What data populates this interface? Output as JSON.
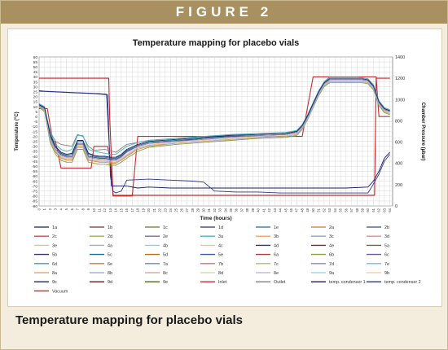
{
  "figure": {
    "banner": "FIGURE 2",
    "caption": "Temperature mapping for placebo vials"
  },
  "chart_data": {
    "type": "line",
    "title": "Temperature mapping for placebo vials",
    "xlabel": "Time (hours)",
    "ylabel": "Temperature (°C)",
    "y2label": "Chamber Pressure (µbar)",
    "xlim": [
      0,
      64.5
    ],
    "ylim": [
      -90,
      60
    ],
    "y2lim": [
      0,
      1400
    ],
    "x_ticks": [
      0,
      1,
      2,
      3,
      4,
      5,
      6,
      7,
      8,
      9,
      10,
      11,
      12,
      13,
      14,
      15,
      16,
      17,
      18,
      19,
      20,
      21,
      22,
      23,
      24,
      25,
      26,
      27,
      28,
      29,
      30,
      31,
      32,
      33,
      34,
      35,
      36,
      37,
      38,
      39,
      40,
      41,
      42,
      43,
      44,
      45,
      46,
      47,
      48,
      49,
      50,
      51,
      52,
      53,
      54,
      55,
      56,
      57,
      58,
      59,
      60,
      61,
      62,
      63,
      64
    ],
    "y_ticks": [
      60,
      55,
      50,
      45,
      40,
      35,
      30,
      25,
      20,
      15,
      10,
      5,
      0,
      -5,
      -10,
      -15,
      -20,
      -25,
      -30,
      -35,
      -40,
      -45,
      -50,
      -55,
      -60,
      -65,
      -70,
      -75,
      -80,
      -85,
      -90
    ],
    "y2_ticks": [
      1400,
      1200,
      1000,
      800,
      600,
      400,
      200,
      0
    ],
    "grid": true,
    "legend_position": "bottom",
    "legend": [
      "1a",
      "1b",
      "1c",
      "1d",
      "1e",
      "2a",
      "2b",
      "2c",
      "2d",
      "2e",
      "3a",
      "3b",
      "3c",
      "3d",
      "3e",
      "4a",
      "4b",
      "4c",
      "4d",
      "4e",
      "5a",
      "5b",
      "5c",
      "5d",
      "5e",
      "6a",
      "6b",
      "6c",
      "6d",
      "6e",
      "7a",
      "7b",
      "7c",
      "7d",
      "7e",
      "8a",
      "8b",
      "8c",
      "8d",
      "8e",
      "9a",
      "9b",
      "9c",
      "9d",
      "9e",
      "Inlet",
      "Outlet",
      "temp. condenser 1",
      "temp. condenser 2",
      "Vacuum"
    ],
    "legend_colors": [
      "#2e4a7a",
      "#a04a4a",
      "#7a9440",
      "#5c4a8a",
      "#3a8aa8",
      "#e08a3a",
      "#4a6aa8",
      "#c05050",
      "#9ab050",
      "#7a6aa8",
      "#4ab0c8",
      "#f0a060",
      "#8aa0d0",
      "#d89090",
      "#c0d090",
      "#b0a0d0",
      "#8ad0e0",
      "#f8c090",
      "#2a3a6a",
      "#802a2a",
      "#5a7a2a",
      "#403070",
      "#206a8a",
      "#b86a20",
      "#3a5a9a",
      "#b03a3a",
      "#8aa040",
      "#6a5a98",
      "#3aa0b8",
      "#e07a2a",
      "#6a8ac0",
      "#d07070",
      "#b0c070",
      "#9080c0",
      "#70c0d8",
      "#f0a870",
      "#a0b0d8",
      "#e0a8a8",
      "#d0e0a8",
      "#c8b8e0",
      "#a0d8e8",
      "#f8d0b0",
      "#1a2a5a",
      "#701a1a",
      "#4a6a1a",
      "#c03030",
      "#808080",
      "#1a1a66",
      "#2a3a88",
      "#cc2222"
    ],
    "series": [
      {
        "name": "Inlet",
        "color": "#c03030",
        "axis": "left",
        "x": [
          0,
          1.5,
          2.5,
          3,
          4,
          9.5,
          10,
          12.5,
          13,
          13.5,
          15,
          17,
          18,
          48,
          50,
          52,
          53,
          59,
          61.5,
          62,
          64
        ],
        "y": [
          8,
          8,
          -25,
          -25,
          -52,
          -52,
          -30,
          -30,
          -45,
          -80,
          -80,
          -80,
          -20,
          -20,
          40,
          40,
          40,
          40,
          40,
          0,
          0
        ]
      },
      {
        "name": "Vacuum",
        "color": "#cc2222",
        "axis": "right",
        "x": [
          0,
          12.7,
          12.9,
          13.5,
          61.2,
          61.5,
          64
        ],
        "y": [
          1200,
          1200,
          800,
          100,
          100,
          1200,
          1200
        ]
      },
      {
        "name": "temp. condenser 1",
        "color": "#1a1a66",
        "axis": "left",
        "x": [
          0,
          1,
          3,
          5,
          7,
          9,
          11,
          12.3,
          12.7,
          13.2,
          14,
          16,
          18,
          20,
          24,
          30,
          36,
          42,
          48,
          52,
          56,
          60,
          61,
          62,
          63,
          64
        ],
        "y": [
          26,
          25.5,
          25,
          24.5,
          24,
          23.5,
          23,
          22.5,
          -20,
          -70,
          -70,
          -70,
          -72,
          -71,
          -72,
          -72,
          -72,
          -72,
          -72,
          -72,
          -72,
          -71,
          -65,
          -55,
          -42,
          -36
        ]
      },
      {
        "name": "temp. condenser 2",
        "color": "#2a3a88",
        "axis": "left",
        "x": [
          0,
          2,
          6,
          10,
          12.5,
          13,
          13.5,
          14,
          15,
          16,
          20,
          24,
          28,
          30,
          32,
          36,
          40,
          44,
          48,
          52,
          56,
          60,
          61,
          62,
          63,
          64
        ],
        "y": [
          25.5,
          25,
          24,
          23,
          22,
          -60,
          -75,
          -77,
          -75,
          -64,
          -63,
          -64,
          -65,
          -66,
          -75,
          -76,
          -76,
          -77,
          -77,
          -77,
          -77,
          -77,
          -68,
          -58,
          -45,
          -38
        ]
      },
      {
        "name": "Outlet",
        "color": "#808080",
        "axis": "left",
        "x": [
          0,
          1,
          2,
          3,
          4,
          6,
          7,
          8,
          9,
          10,
          12,
          14,
          16,
          20,
          30,
          40,
          46,
          48,
          50,
          52,
          53,
          55,
          58,
          60,
          61,
          62,
          63,
          64
        ],
        "y": [
          10,
          8,
          -15,
          -25,
          -28,
          -30,
          -18,
          -20,
          -30,
          -34,
          -33,
          -36,
          -28,
          -24,
          -20,
          -17,
          -16,
          -12,
          10,
          35,
          40,
          40,
          40,
          38,
          32,
          15,
          8,
          6
        ]
      },
      {
        "name": "1a",
        "color": "#2e4a7a",
        "axis": "left",
        "x": [
          0,
          1,
          2,
          3,
          4,
          5,
          6,
          7,
          8,
          9,
          10,
          11,
          12,
          13,
          14,
          15,
          16,
          18,
          20,
          25,
          30,
          35,
          40,
          45,
          47,
          48,
          49,
          50,
          51,
          52,
          53,
          56,
          59,
          60,
          61,
          62,
          63,
          64
        ],
        "y": [
          12,
          8,
          -20,
          -33,
          -38,
          -40,
          -40,
          -27,
          -27,
          -40,
          -41,
          -42,
          -42,
          -43,
          -43,
          -40,
          -35,
          -30,
          -27,
          -25,
          -22,
          -20,
          -19,
          -18,
          -16,
          -10,
          0,
          12,
          24,
          33,
          37,
          37,
          37,
          36,
          30,
          14,
          7,
          5
        ]
      },
      {
        "name": "2a",
        "color": "#e08a3a",
        "axis": "left",
        "x": [
          0,
          1,
          2,
          3,
          4,
          5,
          6,
          7,
          8,
          9,
          10,
          11,
          12,
          13,
          14,
          15,
          16,
          18,
          20,
          25,
          30,
          35,
          40,
          45,
          47,
          48,
          49,
          50,
          51,
          52,
          53,
          56,
          59,
          60,
          61,
          62,
          63,
          64
        ],
        "y": [
          10,
          6,
          -24,
          -36,
          -42,
          -44,
          -44,
          -31,
          -31,
          -44,
          -45,
          -46,
          -46,
          -47,
          -47,
          -44,
          -40,
          -33,
          -30,
          -27,
          -25,
          -23,
          -21,
          -20,
          -18,
          -12,
          -2,
          10,
          22,
          31,
          35,
          35,
          35,
          34,
          28,
          12,
          5,
          3
        ]
      },
      {
        "name": "3e",
        "color": "#4ab0c8",
        "axis": "left",
        "x": [
          0,
          1,
          2,
          3,
          4,
          5,
          6,
          7,
          8,
          9,
          10,
          11,
          12,
          13,
          14,
          15,
          16,
          18,
          20,
          25,
          30,
          35,
          40,
          45,
          47,
          48,
          49,
          50,
          51,
          52,
          53,
          56,
          59,
          60,
          61,
          62,
          63,
          64
        ],
        "y": [
          13,
          10,
          -16,
          -28,
          -33,
          -35,
          -33,
          -19,
          -19,
          -33,
          -35,
          -36,
          -37,
          -38,
          -38,
          -34,
          -30,
          -26,
          -24,
          -22,
          -20,
          -18,
          -17,
          -16,
          -14,
          -8,
          2,
          14,
          26,
          35,
          39,
          39,
          39,
          38,
          32,
          16,
          9,
          7
        ]
      },
      {
        "name": "4c",
        "color": "#f8c090",
        "axis": "left",
        "x": [
          0,
          1,
          2,
          3,
          4,
          5,
          6,
          7,
          8,
          9,
          10,
          11,
          12,
          13,
          14,
          15,
          16,
          18,
          20,
          25,
          30,
          35,
          40,
          45,
          47,
          48,
          49,
          50,
          51,
          52,
          53,
          56,
          59,
          60,
          61,
          62,
          63,
          64
        ],
        "y": [
          11,
          7,
          -22,
          -34,
          -40,
          -42,
          -42,
          -29,
          -29,
          -42,
          -43,
          -44,
          -44,
          -45,
          -45,
          -42,
          -38,
          -31,
          -28,
          -26,
          -24,
          -22,
          -20,
          -19,
          -17,
          -11,
          -1,
          11,
          23,
          32,
          36,
          36,
          36,
          35,
          29,
          13,
          6,
          4
        ]
      },
      {
        "name": "5c",
        "color": "#206a8a",
        "axis": "left",
        "x": [
          0,
          1,
          2,
          3,
          4,
          5,
          6,
          7,
          8,
          9,
          10,
          11,
          12,
          13,
          14,
          15,
          16,
          18,
          20,
          25,
          30,
          35,
          40,
          45,
          47,
          48,
          49,
          50,
          51,
          52,
          53,
          56,
          59,
          60,
          61,
          62,
          63,
          64
        ],
        "y": [
          12,
          9,
          -19,
          -31,
          -37,
          -39,
          -38,
          -25,
          -25,
          -38,
          -40,
          -41,
          -41,
          -42,
          -42,
          -39,
          -34,
          -29,
          -26,
          -24,
          -22,
          -20,
          -19,
          -18,
          -16,
          -10,
          0,
          12,
          24,
          33,
          37,
          37,
          37,
          36,
          30,
          14,
          7,
          5
        ]
      },
      {
        "name": "6b",
        "color": "#8aa040",
        "axis": "left",
        "x": [
          0,
          1,
          2,
          3,
          4,
          5,
          6,
          7,
          8,
          9,
          10,
          11,
          12,
          13,
          14,
          15,
          16,
          18,
          20,
          25,
          30,
          35,
          40,
          45,
          47,
          48,
          49,
          50,
          51,
          52,
          53,
          56,
          59,
          60,
          61,
          62,
          63,
          64
        ],
        "y": [
          9,
          5,
          -26,
          -38,
          -44,
          -46,
          -46,
          -33,
          -33,
          -46,
          -47,
          -48,
          -48,
          -49,
          -49,
          -46,
          -42,
          -35,
          -31,
          -28,
          -26,
          -24,
          -22,
          -21,
          -19,
          -13,
          -3,
          9,
          21,
          30,
          34,
          34,
          34,
          33,
          27,
          11,
          4,
          2
        ]
      },
      {
        "name": "7d",
        "color": "#9080c0",
        "axis": "left",
        "x": [
          0,
          1,
          2,
          3,
          4,
          5,
          6,
          7,
          8,
          9,
          10,
          11,
          12,
          13,
          14,
          15,
          16,
          18,
          20,
          25,
          30,
          35,
          40,
          45,
          47,
          48,
          49,
          50,
          51,
          52,
          53,
          56,
          59,
          60,
          61,
          62,
          63,
          64
        ],
        "y": [
          11,
          8,
          -21,
          -33,
          -39,
          -41,
          -41,
          -28,
          -28,
          -41,
          -42,
          -43,
          -43,
          -44,
          -44,
          -41,
          -36,
          -30,
          -27,
          -25,
          -23,
          -21,
          -19,
          -18,
          -16,
          -10,
          0,
          12,
          24,
          33,
          37,
          37,
          37,
          36,
          30,
          14,
          7,
          5
        ]
      },
      {
        "name": "8b",
        "color": "#a0b0d8",
        "axis": "left",
        "x": [
          0,
          1,
          2,
          3,
          4,
          5,
          6,
          7,
          8,
          9,
          10,
          11,
          12,
          13,
          14,
          15,
          16,
          18,
          20,
          25,
          30,
          35,
          40,
          45,
          47,
          48,
          49,
          50,
          51,
          52,
          53,
          56,
          59,
          60,
          61,
          62,
          63,
          64
        ],
        "y": [
          10,
          7,
          -23,
          -35,
          -41,
          -43,
          -43,
          -30,
          -30,
          -43,
          -44,
          -45,
          -45,
          -46,
          -46,
          -43,
          -39,
          -32,
          -29,
          -27,
          -25,
          -23,
          -21,
          -20,
          -18,
          -12,
          -2,
          10,
          22,
          31,
          35,
          35,
          35,
          34,
          28,
          12,
          5,
          3
        ]
      },
      {
        "name": "9c",
        "color": "#1a2a5a",
        "axis": "left",
        "x": [
          0,
          1,
          2,
          3,
          4,
          5,
          6,
          7,
          8,
          9,
          10,
          11,
          12,
          13,
          14,
          15,
          16,
          18,
          20,
          25,
          30,
          35,
          40,
          45,
          47,
          48,
          49,
          50,
          51,
          52,
          53,
          56,
          59,
          60,
          61,
          62,
          63,
          64
        ],
        "y": [
          12,
          9,
          -18,
          -30,
          -36,
          -38,
          -37,
          -24,
          -24,
          -37,
          -39,
          -40,
          -40,
          -41,
          -41,
          -38,
          -33,
          -28,
          -25,
          -23,
          -21,
          -19,
          -18,
          -17,
          -15,
          -9,
          1,
          13,
          25,
          34,
          38,
          38,
          38,
          37,
          31,
          15,
          8,
          6
        ]
      }
    ]
  }
}
